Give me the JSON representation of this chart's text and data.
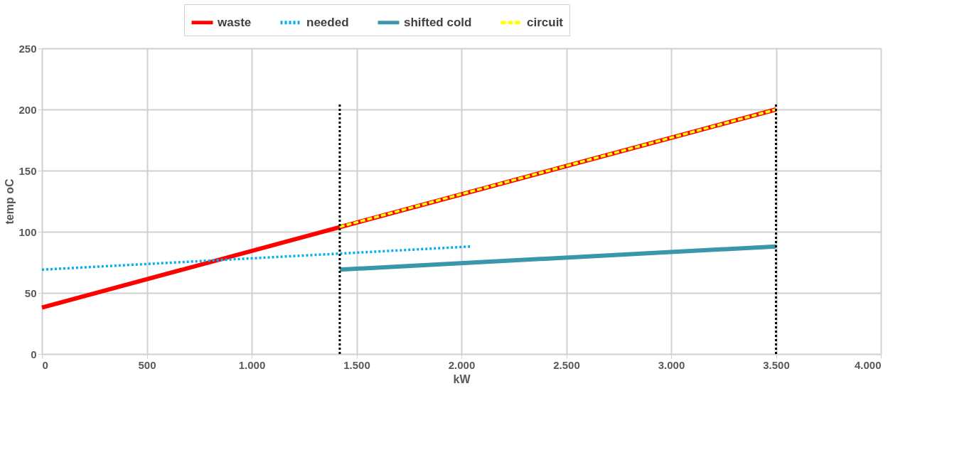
{
  "chart_data": {
    "type": "line",
    "xlabel": "kW",
    "ylabel": "temp oC",
    "xlim": [
      0,
      4000
    ],
    "ylim": [
      0,
      250
    ],
    "xticks": [
      0,
      500,
      {
        "value": 1000,
        "label": "1.000"
      },
      {
        "value": 1500,
        "label": "1.500"
      },
      {
        "value": 2000,
        "label": "2.000"
      },
      {
        "value": 2500,
        "label": "2.500"
      },
      {
        "value": 3000,
        "label": "3.000"
      },
      {
        "value": 3500,
        "label": "3.500"
      },
      {
        "value": 4000,
        "label": "4.000"
      }
    ],
    "yticks": [
      0,
      50,
      100,
      150,
      200,
      250
    ],
    "grid": true,
    "legend": "top",
    "marker": "none",
    "series": [
      {
        "name": "waste",
        "color": "#ff0000",
        "line_style": "solid",
        "x": [
          0,
          3500
        ],
        "values": [
          38,
          200
        ]
      },
      {
        "name": "needed",
        "color": "#00b0f0",
        "line_style": "dotted",
        "x": [
          0,
          2050
        ],
        "values": [
          69,
          88
        ]
      },
      {
        "name": "shifted cold",
        "color": "#3a96aa",
        "line_style": "solid",
        "x": [
          1420,
          3500
        ],
        "values": [
          69,
          88
        ]
      },
      {
        "name": "circuit",
        "color": "#ffff00",
        "line_style": "dashed",
        "x": [
          1420,
          3500
        ],
        "values": [
          104,
          200
        ]
      },
      {
        "color": "#000000",
        "line_style": "dotted",
        "x": [
          1420,
          1420
        ],
        "values": [
          0,
          205
        ]
      },
      {
        "color": "#000000",
        "line_style": "dotted",
        "x": [
          3500,
          3500
        ],
        "values": [
          0,
          205
        ]
      }
    ]
  }
}
